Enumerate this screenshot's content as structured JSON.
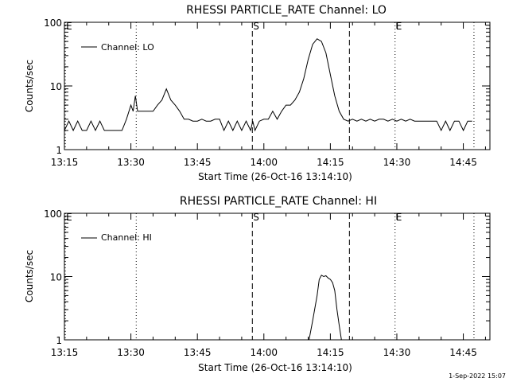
{
  "footer": {
    "date": "1-Sep-2022 15:07"
  },
  "chart_data": [
    {
      "type": "line",
      "title": "RHESSI PARTICLE_RATE Channel: LO",
      "xlabel": "Start Time (26-Oct-16 13:14:10)",
      "ylabel": "Counts/sec",
      "x_ticks": [
        "13:15",
        "13:30",
        "13:45",
        "14:00",
        "14:15",
        "14:30",
        "14:45"
      ],
      "x_tick_minutes": [
        795,
        810,
        825,
        840,
        855,
        870,
        885
      ],
      "xlim_minutes": [
        795,
        891
      ],
      "y_scale": "log",
      "y_ticks": [
        "1",
        "10",
        "100"
      ],
      "y_tick_values": [
        1,
        10,
        100
      ],
      "ylim": [
        1,
        100
      ],
      "legend": {
        "label": "Channel: LO",
        "placement": "top-left"
      },
      "markers": [
        {
          "minute": 795.2,
          "label": "E",
          "style": "dotted"
        },
        {
          "minute": 811.2,
          "label": "",
          "style": "dotted"
        },
        {
          "minute": 837.4,
          "label": "S",
          "style": "dashed"
        },
        {
          "minute": 859.3,
          "label": "",
          "style": "dashed"
        },
        {
          "minute": 869.6,
          "label": "E",
          "style": "dotted"
        },
        {
          "minute": 887.4,
          "label": "",
          "style": "dotted"
        }
      ],
      "series": [
        {
          "x": [
            795,
            796,
            797,
            798,
            799,
            800,
            801,
            802,
            803,
            804,
            805,
            806,
            807,
            808,
            809,
            810,
            810.5,
            811,
            811.5,
            812,
            813,
            814,
            815,
            816,
            817,
            818,
            819,
            820,
            821,
            822,
            823,
            824,
            825,
            826,
            827,
            828,
            829,
            830,
            831,
            832,
            833,
            834,
            835,
            836,
            837,
            837.5,
            838,
            839,
            840,
            841,
            842,
            843,
            844,
            845,
            846,
            847,
            848,
            849,
            850,
            851,
            852,
            853,
            854,
            855,
            856,
            857,
            858,
            859,
            860,
            861,
            862,
            863,
            864,
            865,
            866,
            867,
            868,
            869,
            870,
            871,
            872,
            873,
            874,
            875,
            876,
            877,
            878,
            879,
            880,
            881,
            882,
            883,
            884,
            885,
            886,
            887
          ],
          "y": [
            2,
            2.8,
            2,
            2.8,
            2,
            2,
            2.8,
            2,
            2.8,
            2,
            2,
            2,
            2,
            2,
            3,
            5,
            4,
            7,
            4,
            4,
            4,
            4,
            4,
            5,
            6,
            9,
            6,
            5,
            4,
            3,
            3,
            2.8,
            2.8,
            3,
            2.8,
            2.8,
            3,
            3,
            2,
            2.8,
            2,
            2.8,
            2,
            2.8,
            2,
            2.8,
            2,
            2.8,
            3,
            3,
            4,
            3,
            4,
            5,
            5,
            6,
            8,
            13,
            26,
            45,
            55,
            50,
            33,
            15,
            7,
            4,
            3,
            2.8,
            3,
            2.8,
            3,
            2.8,
            3,
            2.8,
            3,
            3,
            2.8,
            3,
            2.8,
            3,
            2.8,
            3,
            2.8,
            2.8,
            2.8,
            2.8,
            2.8,
            2.8,
            2,
            2.8,
            2,
            2.8,
            2.8,
            2,
            2.8,
            2.8
          ]
        }
      ]
    },
    {
      "type": "line",
      "title": "RHESSI PARTICLE_RATE Channel: HI",
      "xlabel": "Start Time (26-Oct-16 13:14:10)",
      "ylabel": "Counts/sec",
      "x_ticks": [
        "13:15",
        "13:30",
        "13:45",
        "14:00",
        "14:15",
        "14:30",
        "14:45"
      ],
      "x_tick_minutes": [
        795,
        810,
        825,
        840,
        855,
        870,
        885
      ],
      "xlim_minutes": [
        795,
        891
      ],
      "y_scale": "log",
      "y_ticks": [
        "1",
        "10",
        "100"
      ],
      "y_tick_values": [
        1,
        10,
        100
      ],
      "ylim": [
        1,
        100
      ],
      "legend": {
        "label": "Channel: HI",
        "placement": "top-left"
      },
      "markers": [
        {
          "minute": 795.2,
          "label": "E",
          "style": "dotted"
        },
        {
          "minute": 811.2,
          "label": "",
          "style": "dotted"
        },
        {
          "minute": 837.4,
          "label": "S",
          "style": "dashed"
        },
        {
          "minute": 859.3,
          "label": "",
          "style": "dashed"
        },
        {
          "minute": 869.6,
          "label": "E",
          "style": "dotted"
        },
        {
          "minute": 887.4,
          "label": "",
          "style": "dotted"
        }
      ],
      "series": [
        {
          "x": [
            850.2,
            851,
            852,
            852.5,
            853,
            853.5,
            854,
            854.5,
            855,
            855.5,
            856,
            856.5,
            857,
            857.5
          ],
          "y": [
            1,
            2,
            5,
            9,
            10.5,
            10,
            10.3,
            9.5,
            9,
            8,
            6,
            3,
            1.7,
            1
          ]
        }
      ]
    }
  ]
}
